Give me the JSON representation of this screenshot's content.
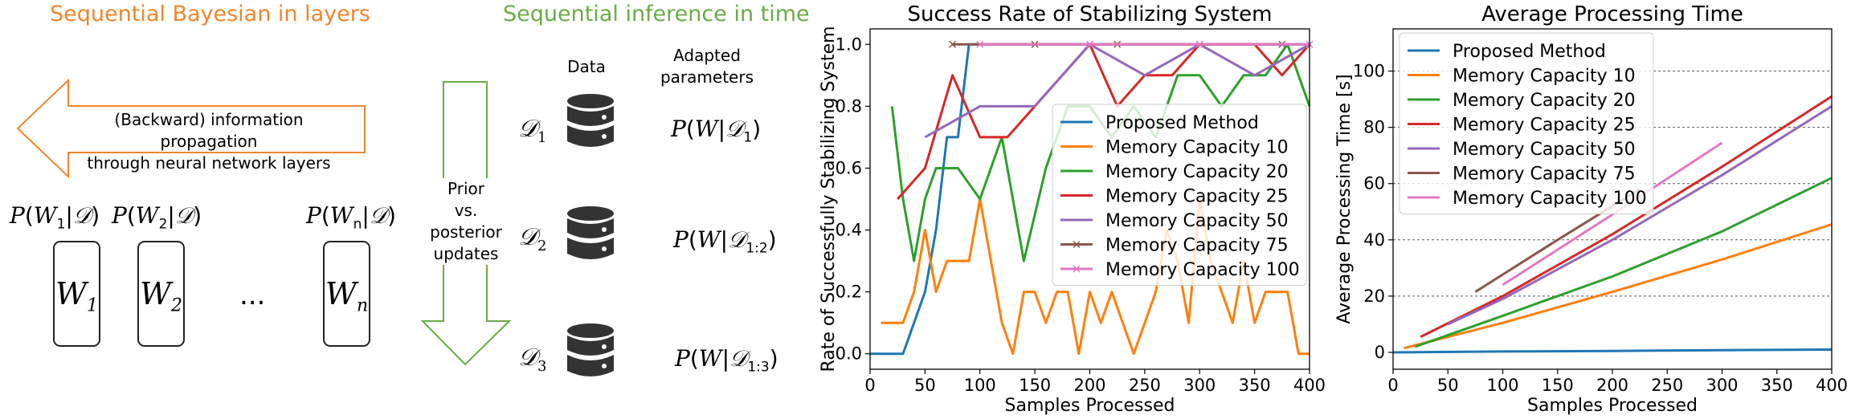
{
  "left_panel": {
    "title_layers": "Sequential Bayesian in layers",
    "title_time": "Sequential inference in time",
    "arrow_text_line1": "(Backward) information propagation",
    "arrow_text_line2": "through neural network layers",
    "posteriors": [
      "P(W1|D)",
      "P(W2|D)",
      "P(Wn|D)"
    ],
    "weights": [
      "W1",
      "W2",
      "Wn"
    ],
    "ellipsis": "...",
    "down_arrow_text": [
      "Prior",
      "vs.",
      "posterior",
      "updates"
    ],
    "data_header": "Data",
    "params_header_line1": "Adapted",
    "params_header_line2": "parameters",
    "datasets": [
      "D1",
      "D2",
      "D3"
    ],
    "params": [
      "P(W|D1)",
      "P(W|D1:2)",
      "P(W|D1:3)"
    ],
    "colors": {
      "orange": "#f0852d",
      "green": "#6aab46"
    }
  },
  "chart_data": [
    {
      "type": "line",
      "title": "Success Rate of Stabilizing System",
      "xlabel": "Samples Processed",
      "ylabel": "Rate of Successfully Stabilizing System",
      "xlim": [
        0,
        400
      ],
      "ylim": [
        -0.05,
        1.05
      ],
      "xticks": [
        0,
        50,
        100,
        150,
        200,
        250,
        300,
        350,
        400
      ],
      "yticks": [
        0.0,
        0.2,
        0.4,
        0.6,
        0.8,
        1.0
      ],
      "legend_position": "center-right",
      "grid": false,
      "series": [
        {
          "name": "Proposed Method",
          "color": "#1f77b4",
          "marker": "",
          "x": [
            0,
            10,
            20,
            30,
            40,
            50,
            60,
            70,
            80,
            90,
            100,
            120,
            150,
            200,
            250,
            300,
            350,
            400
          ],
          "y": [
            0,
            0,
            0,
            0,
            0.1,
            0.2,
            0.4,
            0.7,
            0.7,
            1.0,
            1.0,
            1.0,
            1.0,
            1.0,
            1.0,
            1.0,
            1.0,
            1.0
          ]
        },
        {
          "name": "Memory Capacity 10",
          "color": "#ff7f0e",
          "marker": "",
          "x": [
            10,
            20,
            30,
            40,
            50,
            60,
            70,
            80,
            90,
            100,
            110,
            120,
            130,
            140,
            150,
            160,
            170,
            180,
            190,
            200,
            210,
            220,
            230,
            240,
            250,
            260,
            270,
            280,
            290,
            300,
            310,
            320,
            330,
            340,
            350,
            360,
            370,
            380,
            390,
            400
          ],
          "y": [
            0.1,
            0.1,
            0.1,
            0.2,
            0.4,
            0.2,
            0.3,
            0.3,
            0.3,
            0.5,
            0.3,
            0.1,
            0.0,
            0.2,
            0.2,
            0.1,
            0.2,
            0.2,
            0.0,
            0.2,
            0.1,
            0.2,
            0.1,
            0.0,
            0.1,
            0.2,
            0.4,
            0.3,
            0.1,
            0.5,
            0.3,
            0.2,
            0.1,
            0.3,
            0.1,
            0.2,
            0.2,
            0.2,
            0.0,
            0.0
          ]
        },
        {
          "name": "Memory Capacity 20",
          "color": "#2ca02c",
          "marker": "",
          "x": [
            20,
            30,
            40,
            50,
            60,
            70,
            80,
            100,
            120,
            140,
            160,
            180,
            200,
            220,
            240,
            260,
            280,
            300,
            320,
            340,
            360,
            380,
            400
          ],
          "y": [
            0.8,
            0.5,
            0.3,
            0.5,
            0.6,
            0.6,
            0.6,
            0.5,
            0.7,
            0.3,
            0.6,
            0.8,
            0.8,
            0.7,
            0.8,
            0.7,
            0.9,
            0.9,
            0.8,
            0.9,
            0.9,
            1.0,
            0.8
          ]
        },
        {
          "name": "Memory Capacity 25",
          "color": "#d62728",
          "marker": "",
          "x": [
            25,
            50,
            75,
            100,
            125,
            150,
            175,
            200,
            225,
            250,
            275,
            300,
            325,
            350,
            375,
            400
          ],
          "y": [
            0.5,
            0.6,
            0.9,
            0.7,
            0.7,
            0.8,
            0.9,
            1.0,
            0.8,
            0.9,
            0.9,
            1.0,
            1.0,
            1.0,
            0.9,
            1.0
          ]
        },
        {
          "name": "Memory Capacity 50",
          "color": "#9467bd",
          "marker": "",
          "x": [
            50,
            100,
            150,
            200,
            250,
            300,
            350,
            400
          ],
          "y": [
            0.7,
            0.8,
            0.8,
            1.0,
            0.9,
            1.0,
            0.9,
            1.0
          ]
        },
        {
          "name": "Memory Capacity 75",
          "color": "#8c564b",
          "marker": "x",
          "x": [
            75,
            150,
            225,
            300,
            375
          ],
          "y": [
            1.0,
            1.0,
            1.0,
            1.0,
            1.0
          ]
        },
        {
          "name": "Memory Capacity 100",
          "color": "#e377c2",
          "marker": "x",
          "x": [
            100,
            200,
            300,
            400
          ],
          "y": [
            1.0,
            1.0,
            1.0,
            1.0
          ]
        }
      ]
    },
    {
      "type": "line",
      "title": "Average Processing Time",
      "xlabel": "Samples Processed",
      "ylabel": "Average Processing Time [s]",
      "xlim": [
        0,
        400
      ],
      "ylim": [
        -6,
        115
      ],
      "xticks": [
        0,
        50,
        100,
        150,
        200,
        250,
        300,
        350,
        400
      ],
      "yticks": [
        0,
        20,
        40,
        60,
        80,
        100
      ],
      "legend_position": "upper-left",
      "grid": "y-dashed",
      "series": [
        {
          "name": "Proposed Method",
          "color": "#1f77b4",
          "x": [
            0,
            100,
            200,
            300,
            400
          ],
          "y": [
            0,
            0.3,
            0.5,
            0.8,
            1.0
          ]
        },
        {
          "name": "Memory Capacity 10",
          "color": "#ff7f0e",
          "x": [
            10,
            100,
            200,
            300,
            400
          ],
          "y": [
            1.5,
            10.5,
            21.5,
            33,
            45.5
          ]
        },
        {
          "name": "Memory Capacity 20",
          "color": "#2ca02c",
          "x": [
            20,
            100,
            200,
            300,
            400
          ],
          "y": [
            2,
            13,
            27,
            43,
            62
          ]
        },
        {
          "name": "Memory Capacity 25",
          "color": "#d62728",
          "x": [
            25,
            100,
            200,
            300,
            400
          ],
          "y": [
            5.5,
            20,
            42,
            66,
            91
          ]
        },
        {
          "name": "Memory Capacity 50",
          "color": "#9467bd",
          "x": [
            50,
            100,
            200,
            300,
            400
          ],
          "y": [
            10,
            19,
            40,
            63,
            87.5
          ]
        },
        {
          "name": "Memory Capacity 75",
          "color": "#8c564b",
          "x": [
            75,
            150,
            225
          ],
          "y": [
            21.5,
            40,
            58
          ]
        },
        {
          "name": "Memory Capacity 100",
          "color": "#e377c2",
          "x": [
            100,
            200,
            300
          ],
          "y": [
            24,
            49,
            74.5
          ]
        }
      ]
    }
  ]
}
